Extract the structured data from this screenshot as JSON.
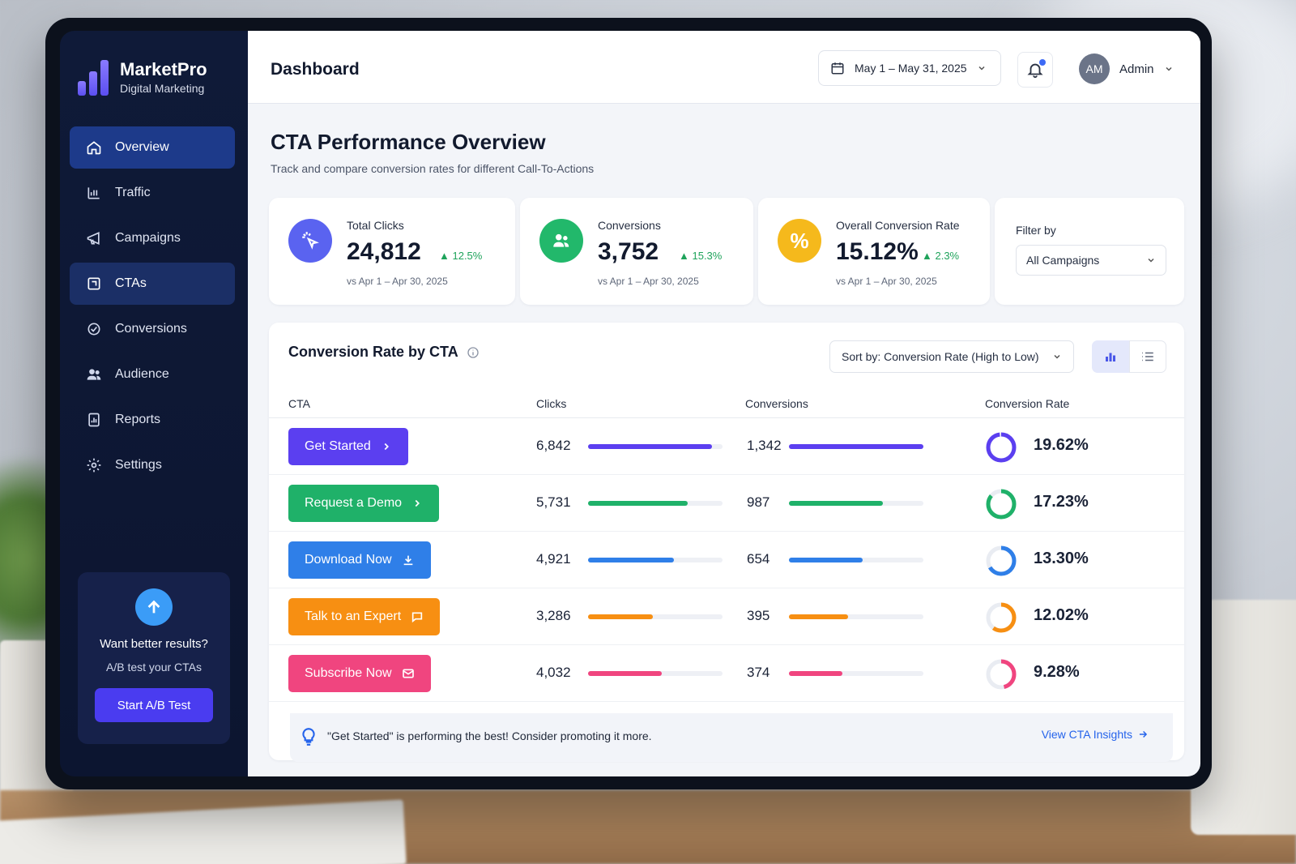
{
  "brand": {
    "name": "MarketPro",
    "tagline": "Digital Marketing",
    "logo_icon": "bar-chart-logo-icon"
  },
  "nav": [
    {
      "label": "Overview",
      "icon": "home-icon",
      "state": "active"
    },
    {
      "label": "Traffic",
      "icon": "bar-chart-icon",
      "state": ""
    },
    {
      "label": "Campaigns",
      "icon": "megaphone-icon",
      "state": ""
    },
    {
      "label": "CTAs",
      "icon": "cta-icon",
      "state": "highlight"
    },
    {
      "label": "Conversions",
      "icon": "conversion-icon",
      "state": ""
    },
    {
      "label": "Audience",
      "icon": "users-icon",
      "state": ""
    },
    {
      "label": "Reports",
      "icon": "report-icon",
      "state": ""
    },
    {
      "label": "Settings",
      "icon": "gear-icon",
      "state": ""
    }
  ],
  "promo": {
    "title": "Want better results?",
    "subtitle": "A/B test your CTAs",
    "button": "Start A/B Test"
  },
  "header": {
    "title": "Dashboard",
    "date_range": "May 1 – May 31, 2025",
    "user": {
      "initials": "AM",
      "name": "Admin"
    }
  },
  "page": {
    "title": "CTA Performance Overview",
    "subtitle": "Track and compare conversion rates for different Call-To-Actions"
  },
  "kpis": [
    {
      "label": "Total Clicks",
      "value": "24,812",
      "delta": "12.5%",
      "vs": "vs Apr 1 – Apr 30, 2025",
      "color": "#5a63f0",
      "icon": "cursor-click-icon"
    },
    {
      "label": "Conversions",
      "value": "3,752",
      "delta": "15.3%",
      "vs": "vs Apr 1 – Apr 30, 2025",
      "color": "#22b86b",
      "icon": "users-icon"
    },
    {
      "label": "Overall Conversion Rate",
      "value": "15.12%",
      "delta": "2.3%",
      "vs": "vs Apr 1 – Apr 30, 2025",
      "color": "#f5b91c",
      "icon": "percent-icon"
    }
  ],
  "filter": {
    "label": "Filter by",
    "value": "All Campaigns"
  },
  "table": {
    "title": "Conversion Rate by CTA",
    "sort": "Sort by: Conversion Rate (High to Low)",
    "columns": [
      "CTA",
      "Clicks",
      "Conversions",
      "Conversion Rate"
    ],
    "rows": [
      {
        "cta": "Get Started",
        "icon": "chevron-right-icon",
        "color": "#5b3ff0",
        "clicks": "6,842",
        "clicks_fill": 0.92,
        "conversions": "1,342",
        "conv_fill": 1.0,
        "rate": "19.62%",
        "rate_value": 19.62
      },
      {
        "cta": "Request a Demo",
        "icon": "chevron-right-icon",
        "color": "#1fb169",
        "clicks": "5,731",
        "clicks_fill": 0.74,
        "conversions": "987",
        "conv_fill": 0.7,
        "rate": "17.23%",
        "rate_value": 17.23
      },
      {
        "cta": "Download Now",
        "icon": "download-icon",
        "color": "#2f7fe8",
        "clicks": "4,921",
        "clicks_fill": 0.64,
        "conversions": "654",
        "conv_fill": 0.55,
        "rate": "13.30%",
        "rate_value": 13.3
      },
      {
        "cta": "Talk to an Expert",
        "icon": "chat-icon",
        "color": "#f78f12",
        "clicks": "3,286",
        "clicks_fill": 0.48,
        "conversions": "395",
        "conv_fill": 0.44,
        "rate": "12.02%",
        "rate_value": 12.02
      },
      {
        "cta": "Subscribe Now",
        "icon": "mail-icon",
        "color": "#f0457f",
        "clicks": "4,032",
        "clicks_fill": 0.55,
        "conversions": "374",
        "conv_fill": 0.4,
        "rate": "9.28%",
        "rate_value": 9.28
      }
    ]
  },
  "insight": {
    "text": "\"Get Started\" is performing the best! Consider promoting it more.",
    "link": "View CTA Insights"
  }
}
